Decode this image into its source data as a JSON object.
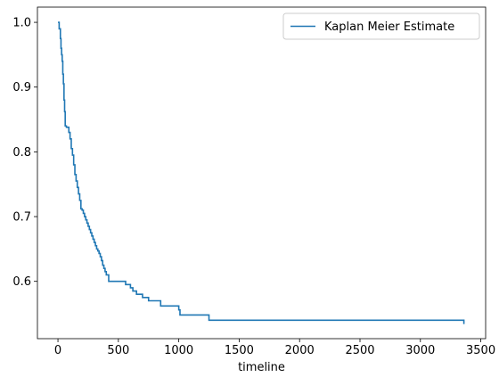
{
  "chart_data": {
    "type": "line",
    "style": "step-post",
    "xlabel": "timeline",
    "ylabel": "",
    "title": "",
    "xlim": [
      -170,
      3540
    ],
    "ylim": [
      0.5115,
      1.0235
    ],
    "xticks": [
      0,
      500,
      1000,
      1500,
      2000,
      2500,
      3000,
      3500
    ],
    "yticks": [
      0.6,
      0.7,
      0.8,
      0.9,
      1.0
    ],
    "grid": false,
    "legend_position": "top-right",
    "series": [
      {
        "name": "Kaplan Meier Estimate",
        "color": "#1f77b4",
        "x": [
          0,
          10,
          20,
          25,
          30,
          35,
          40,
          45,
          50,
          55,
          60,
          65,
          70,
          90,
          100,
          110,
          120,
          130,
          140,
          150,
          160,
          170,
          180,
          190,
          200,
          210,
          220,
          230,
          240,
          250,
          260,
          270,
          280,
          290,
          300,
          310,
          320,
          330,
          340,
          350,
          360,
          370,
          380,
          390,
          400,
          420,
          500,
          560,
          600,
          620,
          650,
          700,
          750,
          850,
          1000,
          1010,
          1250,
          3360
        ],
        "y": [
          1.0,
          0.99,
          0.975,
          0.96,
          0.95,
          0.94,
          0.92,
          0.905,
          0.88,
          0.862,
          0.84,
          0.84,
          0.838,
          0.83,
          0.82,
          0.805,
          0.795,
          0.78,
          0.765,
          0.755,
          0.745,
          0.735,
          0.725,
          0.712,
          0.71,
          0.705,
          0.7,
          0.695,
          0.69,
          0.685,
          0.68,
          0.675,
          0.67,
          0.665,
          0.66,
          0.655,
          0.65,
          0.647,
          0.643,
          0.638,
          0.632,
          0.625,
          0.62,
          0.615,
          0.61,
          0.6,
          0.6,
          0.595,
          0.59,
          0.585,
          0.58,
          0.575,
          0.57,
          0.562,
          0.556,
          0.548,
          0.54,
          0.534
        ]
      }
    ]
  }
}
